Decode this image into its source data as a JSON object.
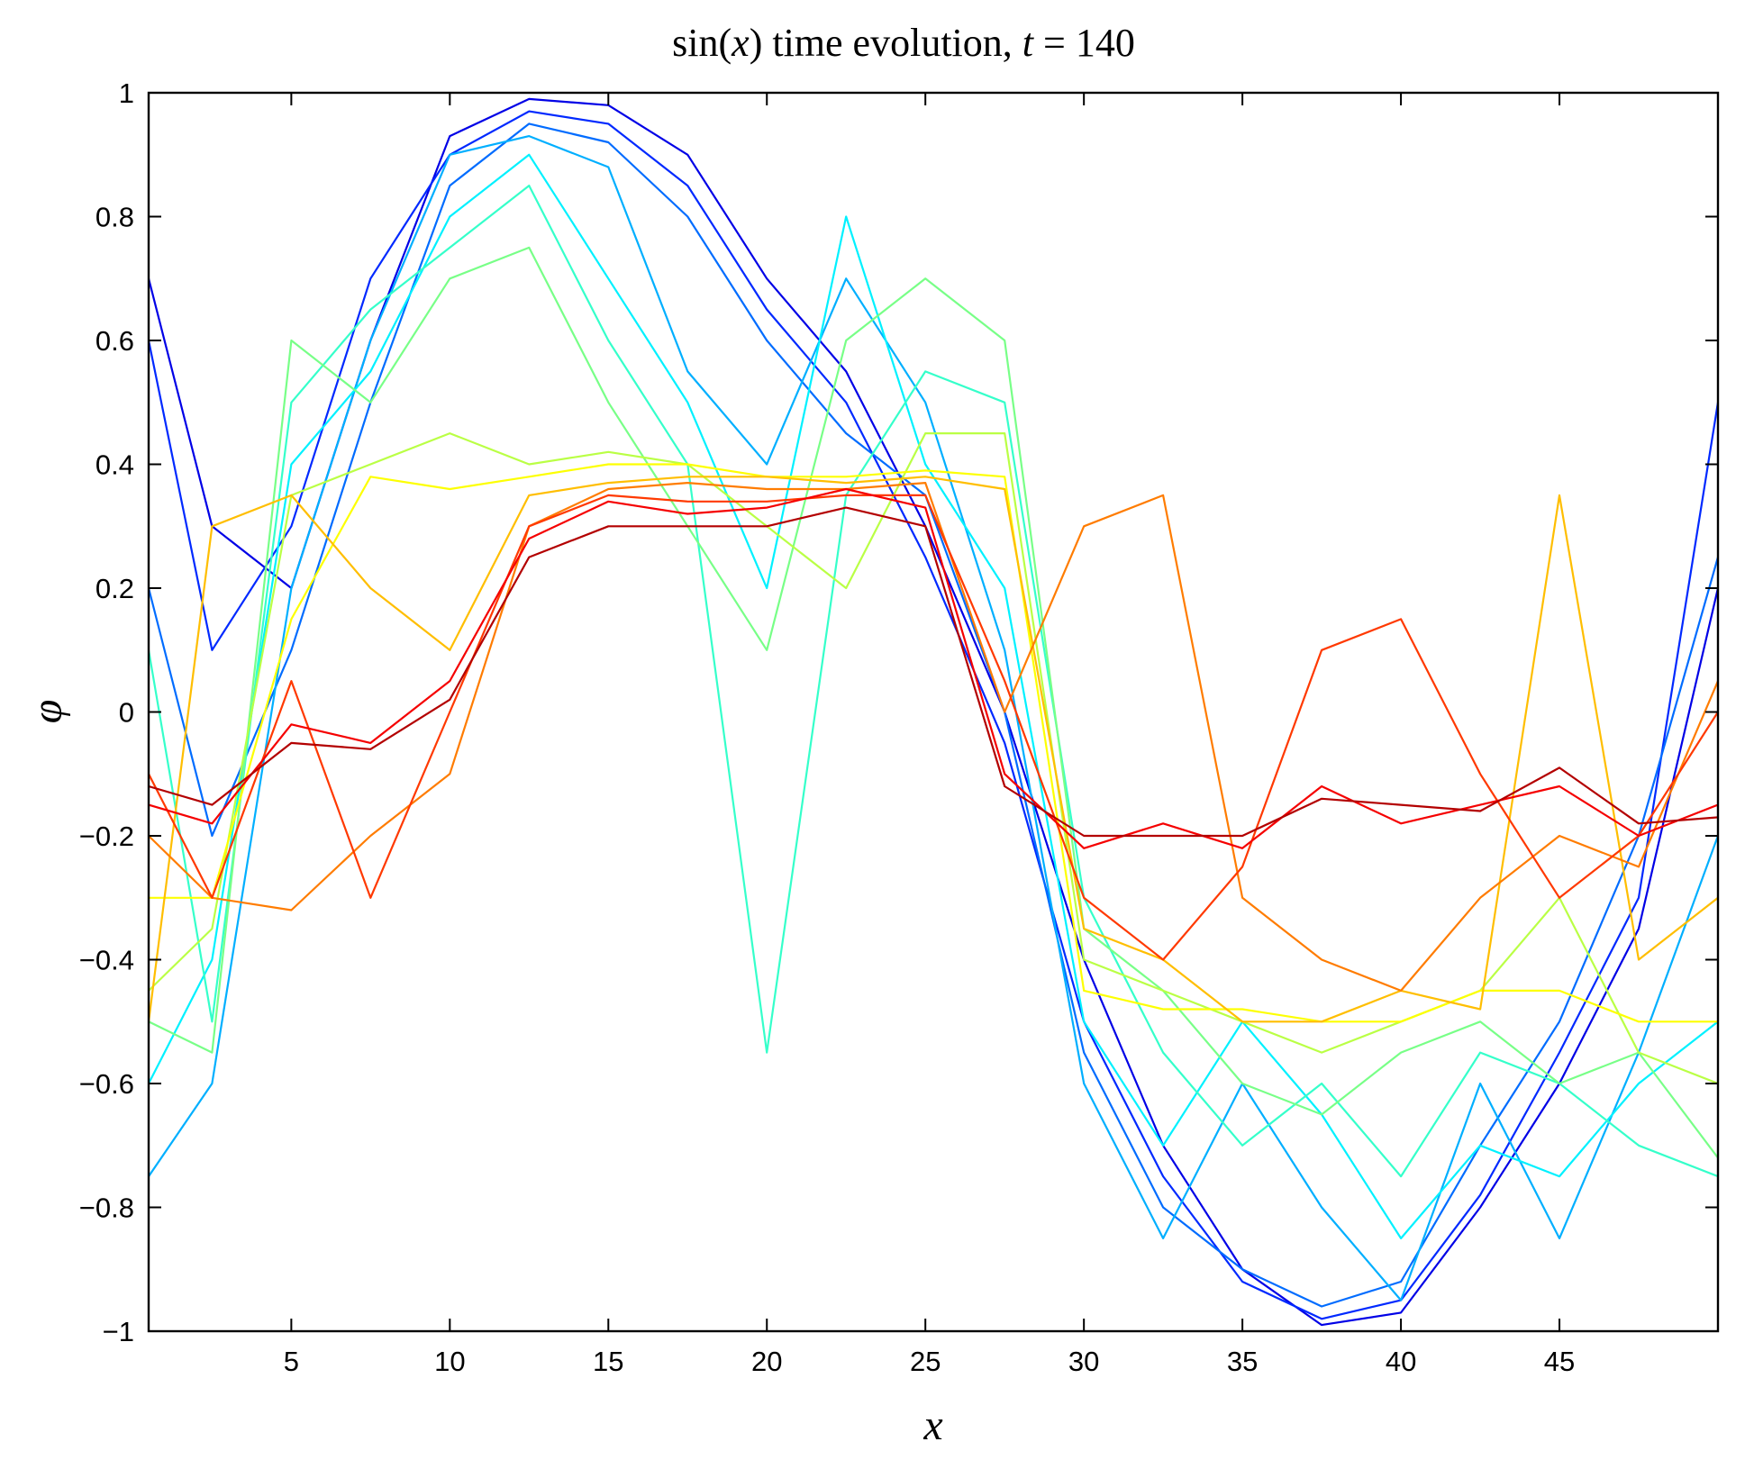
{
  "chart_data": {
    "type": "line",
    "title": "sin(x) time evolution, t = 140",
    "title_parts": {
      "prefix": "sin(",
      "var": "x",
      "mid": ") time evolution, ",
      "t_var": "t",
      "suffix": " = 140"
    },
    "xlabel": "x",
    "ylabel": "φ",
    "xlim": [
      0.5,
      50
    ],
    "ylim": [
      -1,
      1
    ],
    "x_ticks": [
      5,
      10,
      15,
      20,
      25,
      30,
      35,
      40,
      45
    ],
    "x_tick_labels": [
      "5",
      "10",
      "15",
      "20",
      "25",
      "30",
      "35",
      "40",
      "45"
    ],
    "y_ticks": [
      -1,
      -0.8,
      -0.6,
      -0.4,
      -0.2,
      0,
      0.2,
      0.4,
      0.6,
      0.8,
      1
    ],
    "y_tick_labels": [
      "−1",
      "−0.8",
      "−0.6",
      "−0.4",
      "−0.2",
      "0",
      "0.2",
      "0.4",
      "0.6",
      "0.8",
      "1"
    ],
    "grid": false,
    "legend": "none",
    "colormap": "jet",
    "x": [
      0.5,
      2.5,
      5,
      7.5,
      10,
      12.5,
      15,
      17.5,
      20,
      22.5,
      25,
      27.5,
      30,
      32.5,
      35,
      37.5,
      40,
      42.5,
      45,
      47.5,
      50
    ],
    "series": [
      {
        "values": [
          0.7,
          0.3,
          0.2,
          0.6,
          0.93,
          0.99,
          0.98,
          0.9,
          0.7,
          0.55,
          0.3,
          0.0,
          -0.4,
          -0.7,
          -0.9,
          -0.99,
          -0.97,
          -0.8,
          -0.6,
          -0.35,
          0.2
        ]
      },
      {
        "values": [
          0.6,
          0.1,
          0.3,
          0.7,
          0.9,
          0.97,
          0.95,
          0.85,
          0.65,
          0.5,
          0.25,
          -0.05,
          -0.5,
          -0.75,
          -0.92,
          -0.98,
          -0.95,
          -0.78,
          -0.55,
          -0.3,
          0.5
        ]
      },
      {
        "values": [
          0.2,
          -0.2,
          0.1,
          0.5,
          0.85,
          0.95,
          0.92,
          0.8,
          0.6,
          0.45,
          0.35,
          0.0,
          -0.55,
          -0.8,
          -0.9,
          -0.96,
          -0.92,
          -0.7,
          -0.5,
          -0.2,
          0.25
        ]
      },
      {
        "values": [
          -0.75,
          -0.6,
          0.2,
          0.6,
          0.9,
          0.93,
          0.88,
          0.55,
          0.4,
          0.7,
          0.5,
          0.1,
          -0.6,
          -0.85,
          -0.6,
          -0.8,
          -0.95,
          -0.6,
          -0.85,
          -0.55,
          -0.2
        ]
      },
      {
        "values": [
          -0.6,
          -0.4,
          0.4,
          0.55,
          0.8,
          0.9,
          0.7,
          0.5,
          0.2,
          0.8,
          0.4,
          0.2,
          -0.5,
          -0.7,
          -0.5,
          -0.65,
          -0.85,
          -0.7,
          -0.75,
          -0.6,
          -0.5
        ]
      },
      {
        "values": [
          0.1,
          -0.5,
          0.5,
          0.65,
          0.75,
          0.85,
          0.6,
          0.4,
          -0.55,
          0.35,
          0.55,
          0.5,
          -0.3,
          -0.55,
          -0.7,
          -0.6,
          -0.75,
          -0.55,
          -0.6,
          -0.7,
          -0.75
        ]
      },
      {
        "values": [
          -0.5,
          -0.55,
          0.6,
          0.5,
          0.7,
          0.75,
          0.5,
          0.3,
          0.1,
          0.6,
          0.7,
          0.6,
          -0.35,
          -0.45,
          -0.6,
          -0.65,
          -0.55,
          -0.5,
          -0.6,
          -0.55,
          -0.72
        ]
      },
      {
        "values": [
          -0.45,
          -0.35,
          0.35,
          0.4,
          0.45,
          0.4,
          0.42,
          0.4,
          0.3,
          0.2,
          0.45,
          0.45,
          -0.4,
          -0.45,
          -0.5,
          -0.55,
          -0.5,
          -0.45,
          -0.3,
          -0.55,
          -0.6
        ]
      },
      {
        "values": [
          -0.3,
          -0.3,
          0.15,
          0.38,
          0.36,
          0.38,
          0.4,
          0.4,
          0.38,
          0.38,
          0.39,
          0.38,
          -0.45,
          -0.48,
          -0.48,
          -0.5,
          -0.5,
          -0.45,
          -0.45,
          -0.5,
          -0.5
        ]
      },
      {
        "values": [
          -0.5,
          0.3,
          0.35,
          0.2,
          0.1,
          0.35,
          0.37,
          0.38,
          0.38,
          0.37,
          0.38,
          0.36,
          -0.35,
          -0.4,
          -0.5,
          -0.5,
          -0.45,
          -0.48,
          0.35,
          -0.4,
          -0.3
        ]
      },
      {
        "values": [
          -0.2,
          -0.3,
          -0.32,
          -0.2,
          -0.1,
          0.3,
          0.36,
          0.37,
          0.36,
          0.36,
          0.37,
          0.0,
          0.3,
          0.35,
          -0.3,
          -0.4,
          -0.45,
          -0.3,
          -0.2,
          -0.25,
          0.05
        ]
      },
      {
        "values": [
          -0.1,
          -0.3,
          0.05,
          -0.3,
          0.0,
          0.3,
          0.35,
          0.34,
          0.34,
          0.35,
          0.35,
          0.05,
          -0.3,
          -0.4,
          -0.25,
          0.1,
          0.15,
          -0.1,
          -0.3,
          -0.2,
          0.0
        ]
      },
      {
        "values": [
          -0.15,
          -0.18,
          -0.02,
          -0.05,
          0.05,
          0.28,
          0.34,
          0.32,
          0.33,
          0.36,
          0.33,
          -0.1,
          -0.22,
          -0.18,
          -0.22,
          -0.12,
          -0.18,
          -0.15,
          -0.12,
          -0.2,
          -0.15
        ]
      },
      {
        "values": [
          -0.12,
          -0.15,
          -0.05,
          -0.06,
          0.02,
          0.25,
          0.3,
          0.3,
          0.3,
          0.33,
          0.3,
          -0.12,
          -0.2,
          -0.2,
          -0.2,
          -0.14,
          -0.15,
          -0.16,
          -0.09,
          -0.18,
          -0.17
        ]
      }
    ]
  }
}
